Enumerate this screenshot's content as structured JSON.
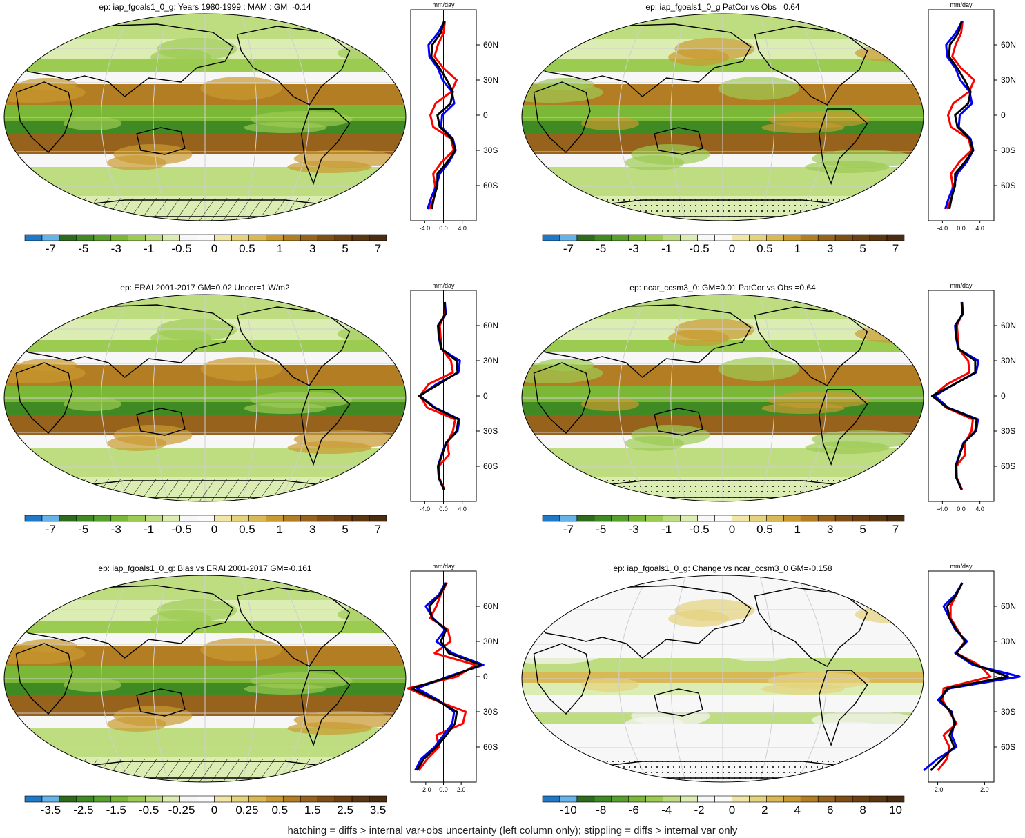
{
  "panels": [
    {
      "title": "ep: iap_fgoals1_0_g: Years 1980-1999 : MAM : GM=-0.14",
      "colorbar_labels": [
        "-7",
        "-5",
        "-3",
        "-1",
        "-0.5",
        "0",
        "0.5",
        "1",
        "3",
        "5",
        "7"
      ],
      "zonal": {
        "units": "mm/day",
        "x_ticks": [
          "-4.0",
          "0.0",
          "4.0"
        ],
        "lat_labels": [
          "60N",
          "30N",
          "0",
          "30S",
          "60S"
        ]
      },
      "pattern": "hatch"
    },
    {
      "title": "ep: iap_fgoals1_0_g PatCor vs Obs =0.64",
      "colorbar_labels": [
        "-7",
        "-5",
        "-3",
        "-1",
        "-0.5",
        "0",
        "0.5",
        "1",
        "3",
        "5",
        "7"
      ],
      "zonal": {
        "units": "mm/day",
        "x_ticks": [
          "-4.0",
          "0.0",
          "4.0"
        ],
        "lat_labels": [
          "60N",
          "30N",
          "0",
          "30S",
          "60S"
        ]
      },
      "pattern": "stipple"
    },
    {
      "title": "ep: ERAI 2001-2017 GM=0.02 Uncer=1 W/m2",
      "colorbar_labels": [
        "-7",
        "-5",
        "-3",
        "-1",
        "-0.5",
        "0",
        "0.5",
        "1",
        "3",
        "5",
        "7"
      ],
      "zonal": {
        "units": "mm/day",
        "x_ticks": [
          "-4.0",
          "0.0",
          "4.0"
        ],
        "lat_labels": [
          "60N",
          "30N",
          "0",
          "30S",
          "60S"
        ]
      },
      "pattern": "hatch"
    },
    {
      "title": "ep: ncar_ccsm3_0: GM=0.01 PatCor vs Obs =0.64",
      "colorbar_labels": [
        "-7",
        "-5",
        "-3",
        "-1",
        "-0.5",
        "0",
        "0.5",
        "1",
        "3",
        "5",
        "7"
      ],
      "zonal": {
        "units": "mm/day",
        "x_ticks": [
          "-4.0",
          "0.0",
          "4.0"
        ],
        "lat_labels": [
          "60N",
          "30N",
          "0",
          "30S",
          "60S"
        ]
      },
      "pattern": "stipple"
    },
    {
      "title": "ep: iap_fgoals1_0_g: Bias vs ERAI 2001-2017 GM=-0.161",
      "colorbar_labels": [
        "-3.5",
        "-2.5",
        "-1.5",
        "-0.5",
        "-0.25",
        "0",
        "0.25",
        "0.5",
        "1.5",
        "2.5",
        "3.5"
      ],
      "zonal": {
        "units": "mm/day",
        "x_ticks": [
          "-2.0",
          "0.0",
          "2.0"
        ],
        "lat_labels": [
          "60N",
          "30N",
          "0",
          "30S",
          "60S"
        ]
      },
      "pattern": "hatch"
    },
    {
      "title": "ep: iap_fgoals1_0_g: Change vs ncar_ccsm3_0 GM=-0.158",
      "colorbar_labels": [
        "-10",
        "-8",
        "-6",
        "-4",
        "-2",
        "0",
        "2",
        "4",
        "6",
        "8",
        "10"
      ],
      "zonal": {
        "units": "mm/day",
        "x_ticks": [
          "-2.0",
          "2.0"
        ],
        "lat_labels": [
          "60N",
          "30N",
          "0",
          "30S",
          "60S"
        ]
      },
      "pattern": "stipple"
    }
  ],
  "colors": {
    "colorbar": [
      "#1f78c8",
      "#66b3ea",
      "#2e6b1d",
      "#3f8a22",
      "#58a02c",
      "#7cb838",
      "#9ccb52",
      "#bedd80",
      "#dcedb4",
      "#f7f7f7",
      "#fbfbfb",
      "#efe6a8",
      "#e4d27c",
      "#d9b956",
      "#c99a31",
      "#b27d23",
      "#96621c",
      "#7e4e17",
      "#6b4013",
      "#5a3611",
      "#4a2c10"
    ],
    "model_line": "#0000ff",
    "obs_line": "#ff0000",
    "ref_line": "#000000",
    "ocean_base": "#a9d36a"
  },
  "footer": "hatching = diffs > internal var+obs uncertainty (left column only); stippling = diffs > internal var only"
}
